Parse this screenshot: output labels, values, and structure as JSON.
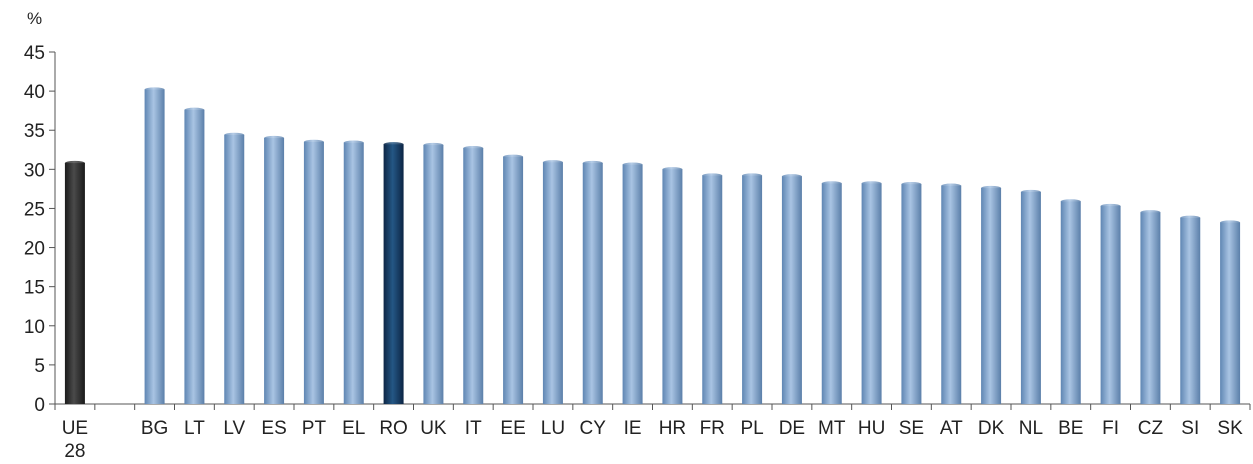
{
  "chart_data": {
    "type": "bar",
    "unit": "%",
    "ylim": [
      0,
      45
    ],
    "yticks": [
      0,
      5,
      10,
      15,
      20,
      25,
      30,
      35,
      40,
      45
    ],
    "grid": false,
    "legend": "none",
    "categories": [
      {
        "label": "UE",
        "label2": "28",
        "value": 30.8,
        "color": "dark-gray"
      },
      {
        "label": "",
        "value": null,
        "color": "none"
      },
      {
        "label": "BG",
        "value": 40.2,
        "color": "steel-blue"
      },
      {
        "label": "LT",
        "value": 37.6,
        "color": "steel-blue"
      },
      {
        "label": "LV",
        "value": 34.4,
        "color": "steel-blue"
      },
      {
        "label": "ES",
        "value": 34.0,
        "color": "steel-blue"
      },
      {
        "label": "PT",
        "value": 33.5,
        "color": "steel-blue"
      },
      {
        "label": "EL",
        "value": 33.4,
        "color": "steel-blue"
      },
      {
        "label": "RO",
        "value": 33.2,
        "color": "navy"
      },
      {
        "label": "UK",
        "value": 33.1,
        "color": "steel-blue"
      },
      {
        "label": "IT",
        "value": 32.7,
        "color": "steel-blue"
      },
      {
        "label": "EE",
        "value": 31.6,
        "color": "steel-blue"
      },
      {
        "label": "LU",
        "value": 30.9,
        "color": "steel-blue"
      },
      {
        "label": "CY",
        "value": 30.8,
        "color": "steel-blue"
      },
      {
        "label": "IE",
        "value": 30.6,
        "color": "steel-blue"
      },
      {
        "label": "HR",
        "value": 30.0,
        "color": "steel-blue"
      },
      {
        "label": "FR",
        "value": 29.2,
        "color": "steel-blue"
      },
      {
        "label": "PL",
        "value": 29.2,
        "color": "steel-blue"
      },
      {
        "label": "DE",
        "value": 29.1,
        "color": "steel-blue"
      },
      {
        "label": "MT",
        "value": 28.2,
        "color": "steel-blue"
      },
      {
        "label": "HU",
        "value": 28.2,
        "color": "steel-blue"
      },
      {
        "label": "SE",
        "value": 28.1,
        "color": "steel-blue"
      },
      {
        "label": "AT",
        "value": 27.9,
        "color": "steel-blue"
      },
      {
        "label": "DK",
        "value": 27.6,
        "color": "steel-blue"
      },
      {
        "label": "NL",
        "value": 27.1,
        "color": "steel-blue"
      },
      {
        "label": "BE",
        "value": 25.9,
        "color": "steel-blue"
      },
      {
        "label": "FI",
        "value": 25.3,
        "color": "steel-blue"
      },
      {
        "label": "CZ",
        "value": 24.5,
        "color": "steel-blue"
      },
      {
        "label": "SI",
        "value": 23.8,
        "color": "steel-blue"
      },
      {
        "label": "SK",
        "value": 23.2,
        "color": "steel-blue"
      }
    ]
  },
  "colors": {
    "dark-gray": "#2b2b2b",
    "steel-blue": "#8fb0d3",
    "navy": "#16385c",
    "axis": "#555555"
  }
}
